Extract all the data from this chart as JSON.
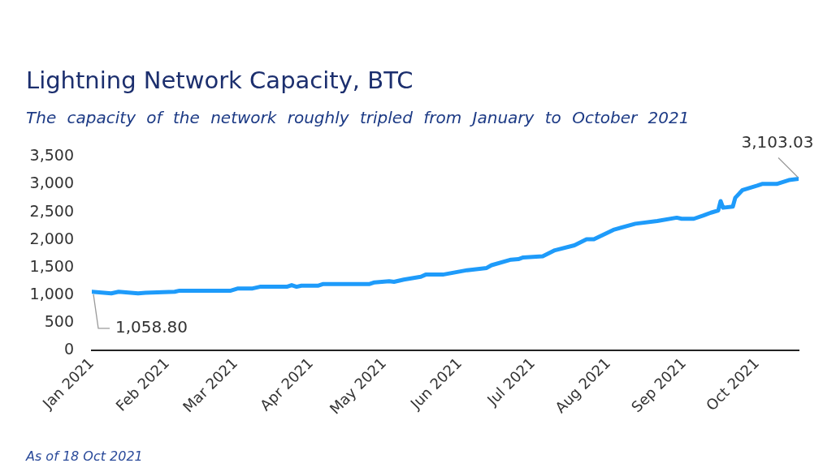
{
  "chart_data": {
    "type": "line",
    "title": "Lightning Network Capacity, BTC",
    "subtitle": "The capacity of the network roughly tripled from January to October 2021",
    "x": [
      "2021-01-01",
      "2021-01-09",
      "2021-01-12",
      "2021-01-20",
      "2021-01-23",
      "2021-02-04",
      "2021-02-06",
      "2021-02-27",
      "2021-03-02",
      "2021-03-08",
      "2021-03-11",
      "2021-03-22",
      "2021-03-24",
      "2021-03-26",
      "2021-03-28",
      "2021-04-04",
      "2021-04-06",
      "2021-04-25",
      "2021-04-27",
      "2021-05-03",
      "2021-05-05",
      "2021-05-09",
      "2021-05-13",
      "2021-05-16",
      "2021-05-18",
      "2021-05-25",
      "2021-06-04",
      "2021-06-12",
      "2021-06-14",
      "2021-06-22",
      "2021-06-25",
      "2021-06-27",
      "2021-07-05",
      "2021-07-10",
      "2021-07-18",
      "2021-07-23",
      "2021-07-26",
      "2021-08-03",
      "2021-08-12",
      "2021-08-21",
      "2021-08-29",
      "2021-08-31",
      "2021-09-05",
      "2021-09-09",
      "2021-09-12",
      "2021-09-15",
      "2021-09-16",
      "2021-09-17",
      "2021-09-21",
      "2021-09-22",
      "2021-09-25",
      "2021-10-01",
      "2021-10-03",
      "2021-10-09",
      "2021-10-14",
      "2021-10-18"
    ],
    "series": [
      {
        "color": "#1e9bfa",
        "values": [
          1058.8,
          1030,
          1060,
          1030,
          1040,
          1060,
          1080,
          1080,
          1120,
          1120,
          1150,
          1150,
          1180,
          1150,
          1170,
          1170,
          1200,
          1200,
          1230,
          1250,
          1240,
          1280,
          1310,
          1330,
          1370,
          1370,
          1450,
          1490,
          1540,
          1640,
          1650,
          1680,
          1700,
          1810,
          1900,
          2010,
          2010,
          2180,
          2290,
          2340,
          2400,
          2380,
          2380,
          2440,
          2490,
          2530,
          2700,
          2580,
          2600,
          2760,
          2900,
          2980,
          3010,
          3010,
          3080,
          3103.03
        ]
      }
    ],
    "xlim": [
      "2021-01-01",
      "2021-10-18"
    ],
    "xticks": [
      {
        "value": "2021-01-01",
        "label": "Jan 2021"
      },
      {
        "value": "2021-02-01",
        "label": "Feb 2021"
      },
      {
        "value": "2021-03-01",
        "label": "Mar 2021"
      },
      {
        "value": "2021-04-01",
        "label": "Apr 2021"
      },
      {
        "value": "2021-05-01",
        "label": "May 2021"
      },
      {
        "value": "2021-06-01",
        "label": "Jun 2021"
      },
      {
        "value": "2021-07-01",
        "label": "Jul 2021"
      },
      {
        "value": "2021-08-01",
        "label": "Aug 2021"
      },
      {
        "value": "2021-09-01",
        "label": "Sep 2021"
      },
      {
        "value": "2021-10-01",
        "label": "Oct 2021"
      }
    ],
    "ylim": [
      0,
      3500
    ],
    "yticks": [
      0,
      500,
      {
        "value": 1000,
        "label": "1,000"
      },
      {
        "value": 1500,
        "label": "1,500"
      },
      {
        "value": 2000,
        "label": "2,000"
      },
      {
        "value": 2500,
        "label": "2,500"
      },
      {
        "value": 3000,
        "label": "3,000"
      },
      {
        "value": 3500,
        "label": "3,500"
      }
    ],
    "annotations": [
      {
        "text": "1,058.80",
        "x": "2021-01-01",
        "y": 1058.8
      },
      {
        "text": "3,103.03",
        "x": "2021-10-18",
        "y": 3103.03
      },
      "As of 18 Oct 2021"
    ]
  }
}
